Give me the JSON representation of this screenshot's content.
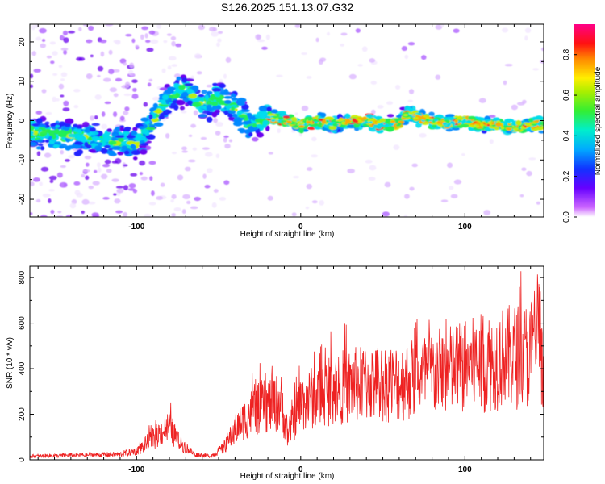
{
  "title": "S126.2025.151.13.07.G32",
  "spectrogram": {
    "type": "heatmap",
    "xlabel": "Height of straight line (km)",
    "ylabel": "Frequency (Hz)",
    "xlim": [
      -165,
      148
    ],
    "ylim": [
      -24.5,
      24.5
    ],
    "xticks": [
      "-100",
      "0",
      "100"
    ],
    "yticks": [
      "20",
      "10",
      "0",
      "-10",
      "-20"
    ],
    "colorbar_label": "Normalized spectral amplitude",
    "colorbar_ticks": [
      "0.0",
      "0.2",
      "0.4",
      "0.6",
      "0.8"
    ],
    "colorscale": "rainbow (white/violet low → red/magenta high)"
  },
  "snr": {
    "type": "line",
    "xlabel": "Height of straight line (km)",
    "ylabel": "SNR (10 * v/v)",
    "xlim": [
      -165,
      148
    ],
    "ylim": [
      0,
      850
    ],
    "xticks": [
      "-100",
      "0",
      "100"
    ],
    "yticks": [
      "800",
      "600",
      "400",
      "200",
      "0"
    ],
    "line_color": "#ee2222"
  },
  "chart_data": [
    {
      "type": "heatmap",
      "description_series": "Signal ridge frequency vs height",
      "xlabel": "Height of straight line (km)",
      "ylabel": "Frequency (Hz)",
      "xlim": [
        -165,
        148
      ],
      "ylim": [
        -24.5,
        24.5
      ],
      "ridge": {
        "x": [
          -165,
          -140,
          -120,
          -100,
          -90,
          -80,
          -70,
          -60,
          -50,
          -40,
          -30,
          -20,
          -10,
          0,
          10,
          20,
          30,
          40,
          50,
          60,
          65,
          70,
          80,
          90,
          100,
          110,
          120,
          130,
          140,
          148
        ],
        "y": [
          -3,
          -4,
          -5,
          -6,
          0,
          6,
          8,
          4,
          6,
          3,
          -1,
          1,
          0,
          -1,
          0,
          -1,
          0,
          0,
          -1,
          -1,
          2,
          1,
          0,
          -1,
          0,
          -1,
          -1,
          -2,
          -1,
          -1
        ]
      },
      "colorbar_ticks": [
        0.0,
        0.2,
        0.4,
        0.6,
        0.8
      ]
    },
    {
      "type": "line",
      "xlabel": "Height of straight line (km)",
      "ylabel": "SNR (10 * v/v)",
      "xlim": [
        -165,
        148
      ],
      "ylim": [
        0,
        850
      ],
      "envelope": {
        "x": [
          -165,
          -110,
          -100,
          -90,
          -80,
          -75,
          -65,
          -55,
          -48,
          -40,
          -30,
          -20,
          -12,
          -8,
          0,
          10,
          20,
          30,
          40,
          60,
          80,
          100,
          120,
          140,
          145,
          148
        ],
        "y": [
          20,
          30,
          50,
          130,
          200,
          120,
          30,
          20,
          60,
          180,
          290,
          330,
          350,
          150,
          340,
          390,
          430,
          450,
          460,
          470,
          520,
          560,
          610,
          640,
          850,
          400
        ]
      }
    }
  ]
}
